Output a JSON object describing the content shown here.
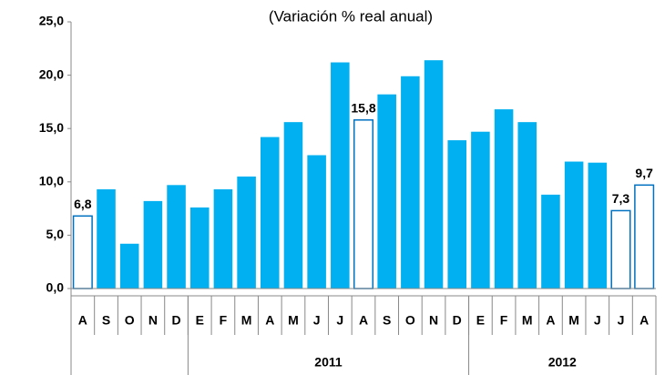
{
  "chart_data": {
    "type": "bar",
    "title": "(Variación % real anual)",
    "categories": [
      "A",
      "S",
      "O",
      "N",
      "D",
      "E",
      "F",
      "M",
      "A",
      "M",
      "J",
      "J",
      "A",
      "S",
      "O",
      "N",
      "D",
      "E",
      "F",
      "M",
      "A",
      "M",
      "J",
      "J",
      "A"
    ],
    "values": [
      6.8,
      9.3,
      4.2,
      8.2,
      9.7,
      7.6,
      9.3,
      10.5,
      14.2,
      15.6,
      12.5,
      21.2,
      15.8,
      18.2,
      19.9,
      21.4,
      13.9,
      14.7,
      16.8,
      15.6,
      8.8,
      11.9,
      11.8,
      7.3,
      9.7
    ],
    "value_labels": [
      "6,8",
      null,
      null,
      null,
      null,
      null,
      null,
      null,
      null,
      null,
      null,
      null,
      "15,8",
      null,
      null,
      null,
      null,
      null,
      null,
      null,
      null,
      null,
      null,
      "7,3",
      "9,7"
    ],
    "groups": [
      {
        "label": null,
        "count": 5
      },
      {
        "label": "2011",
        "count": 12
      },
      {
        "label": "2012",
        "count": 8
      }
    ],
    "color": "#00b0f0",
    "highlight_color": "#0070c0",
    "ylim": [
      0,
      25
    ],
    "yticks": [
      {
        "value": 0,
        "label": "0,0"
      },
      {
        "value": 5,
        "label": "5,0"
      },
      {
        "value": 10,
        "label": "10,0"
      },
      {
        "value": 15,
        "label": "15,0"
      },
      {
        "value": 20,
        "label": "20,0"
      },
      {
        "value": 25,
        "label": "25,0"
      }
    ],
    "grid": false
  }
}
